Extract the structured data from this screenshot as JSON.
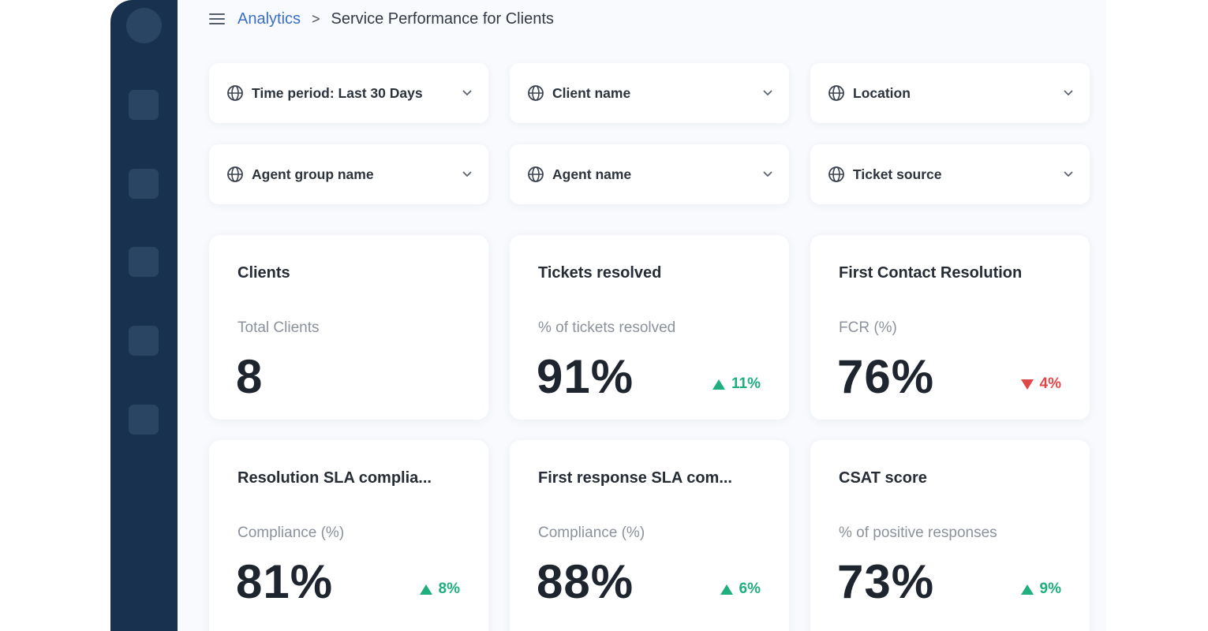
{
  "breadcrumb": {
    "parent": "Analytics",
    "separator": ">",
    "current": "Service Performance for Clients"
  },
  "filters": [
    {
      "label": "Time period:  Last 30 Days",
      "icon": "globe-icon"
    },
    {
      "label": "Client name",
      "icon": "globe-icon"
    },
    {
      "label": "Location",
      "icon": "globe-icon"
    },
    {
      "label": "Agent group name",
      "icon": "globe-icon"
    },
    {
      "label": "Agent name",
      "icon": "globe-icon"
    },
    {
      "label": "Ticket source",
      "icon": "globe-icon"
    }
  ],
  "cards": [
    {
      "title": "Clients",
      "subtitle": "Total Clients",
      "value": "8",
      "delta": "",
      "direction": "none"
    },
    {
      "title": "Tickets resolved",
      "subtitle": "% of tickets resolved",
      "value": "91%",
      "delta": "11%",
      "direction": "up"
    },
    {
      "title": "First Contact Resolution",
      "subtitle": "FCR (%)",
      "value": "76%",
      "delta": "4%",
      "direction": "down"
    },
    {
      "title": "Resolution SLA complia...",
      "subtitle": "Compliance (%)",
      "value": "81%",
      "delta": "8%",
      "direction": "up"
    },
    {
      "title": "First response SLA com...",
      "subtitle": "Compliance (%)",
      "value": "88%",
      "delta": "6%",
      "direction": "up"
    },
    {
      "title": "CSAT score",
      "subtitle": "% of positive responses",
      "value": "73%",
      "delta": "9%",
      "direction": "up"
    }
  ],
  "colors": {
    "sidebar": "#17314f",
    "link": "#3a6fc6",
    "positive": "#1fae7e",
    "negative": "#e04848"
  }
}
